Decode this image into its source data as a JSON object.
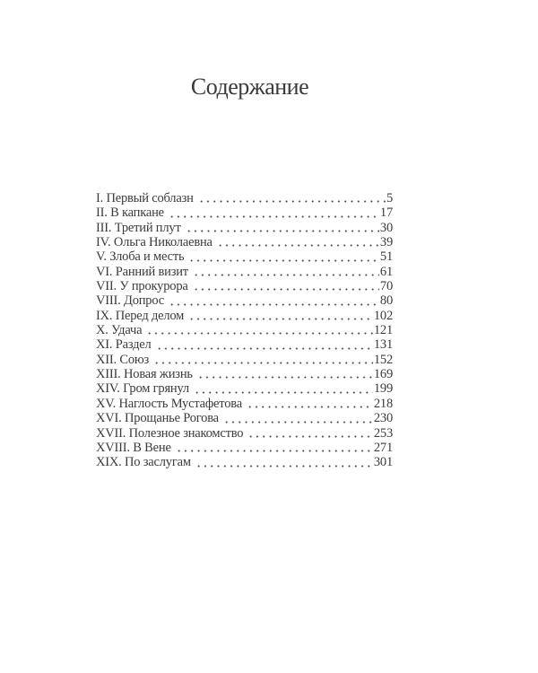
{
  "colors": {
    "background": "#ffffff",
    "text": "#3b3b3b"
  },
  "toc": {
    "title": "Содержание",
    "entries": [
      {
        "label": "I. Первый соблазн",
        "page": "5"
      },
      {
        "label": "II. В капкане",
        "page": "17"
      },
      {
        "label": "III. Третий плут",
        "page": "30"
      },
      {
        "label": "IV. Ольга Николаевна",
        "page": "39"
      },
      {
        "label": "V. Злоба и месть",
        "page": "51"
      },
      {
        "label": "VI. Ранний визит",
        "page": "61"
      },
      {
        "label": "VII. У прокурора",
        "page": "70"
      },
      {
        "label": "VIII. Допрос",
        "page": "80"
      },
      {
        "label": "IX. Перед делом",
        "page": "102"
      },
      {
        "label": "X. Удача",
        "page": "121"
      },
      {
        "label": "XI. Раздел",
        "page": "131"
      },
      {
        "label": "XII. Союз",
        "page": "152"
      },
      {
        "label": "XIII. Новая жизнь",
        "page": "169"
      },
      {
        "label": "XIV. Гром грянул",
        "page": "199"
      },
      {
        "label": "XV. Наглость Мустафетова",
        "page": "218"
      },
      {
        "label": "XVI. Прощанье Рогова",
        "page": "230"
      },
      {
        "label": "XVII. Полезное знакомство",
        "page": "253"
      },
      {
        "label": "XVIII. В Вене",
        "page": "271"
      },
      {
        "label": "XIX. По заслугам",
        "page": "301"
      }
    ]
  }
}
